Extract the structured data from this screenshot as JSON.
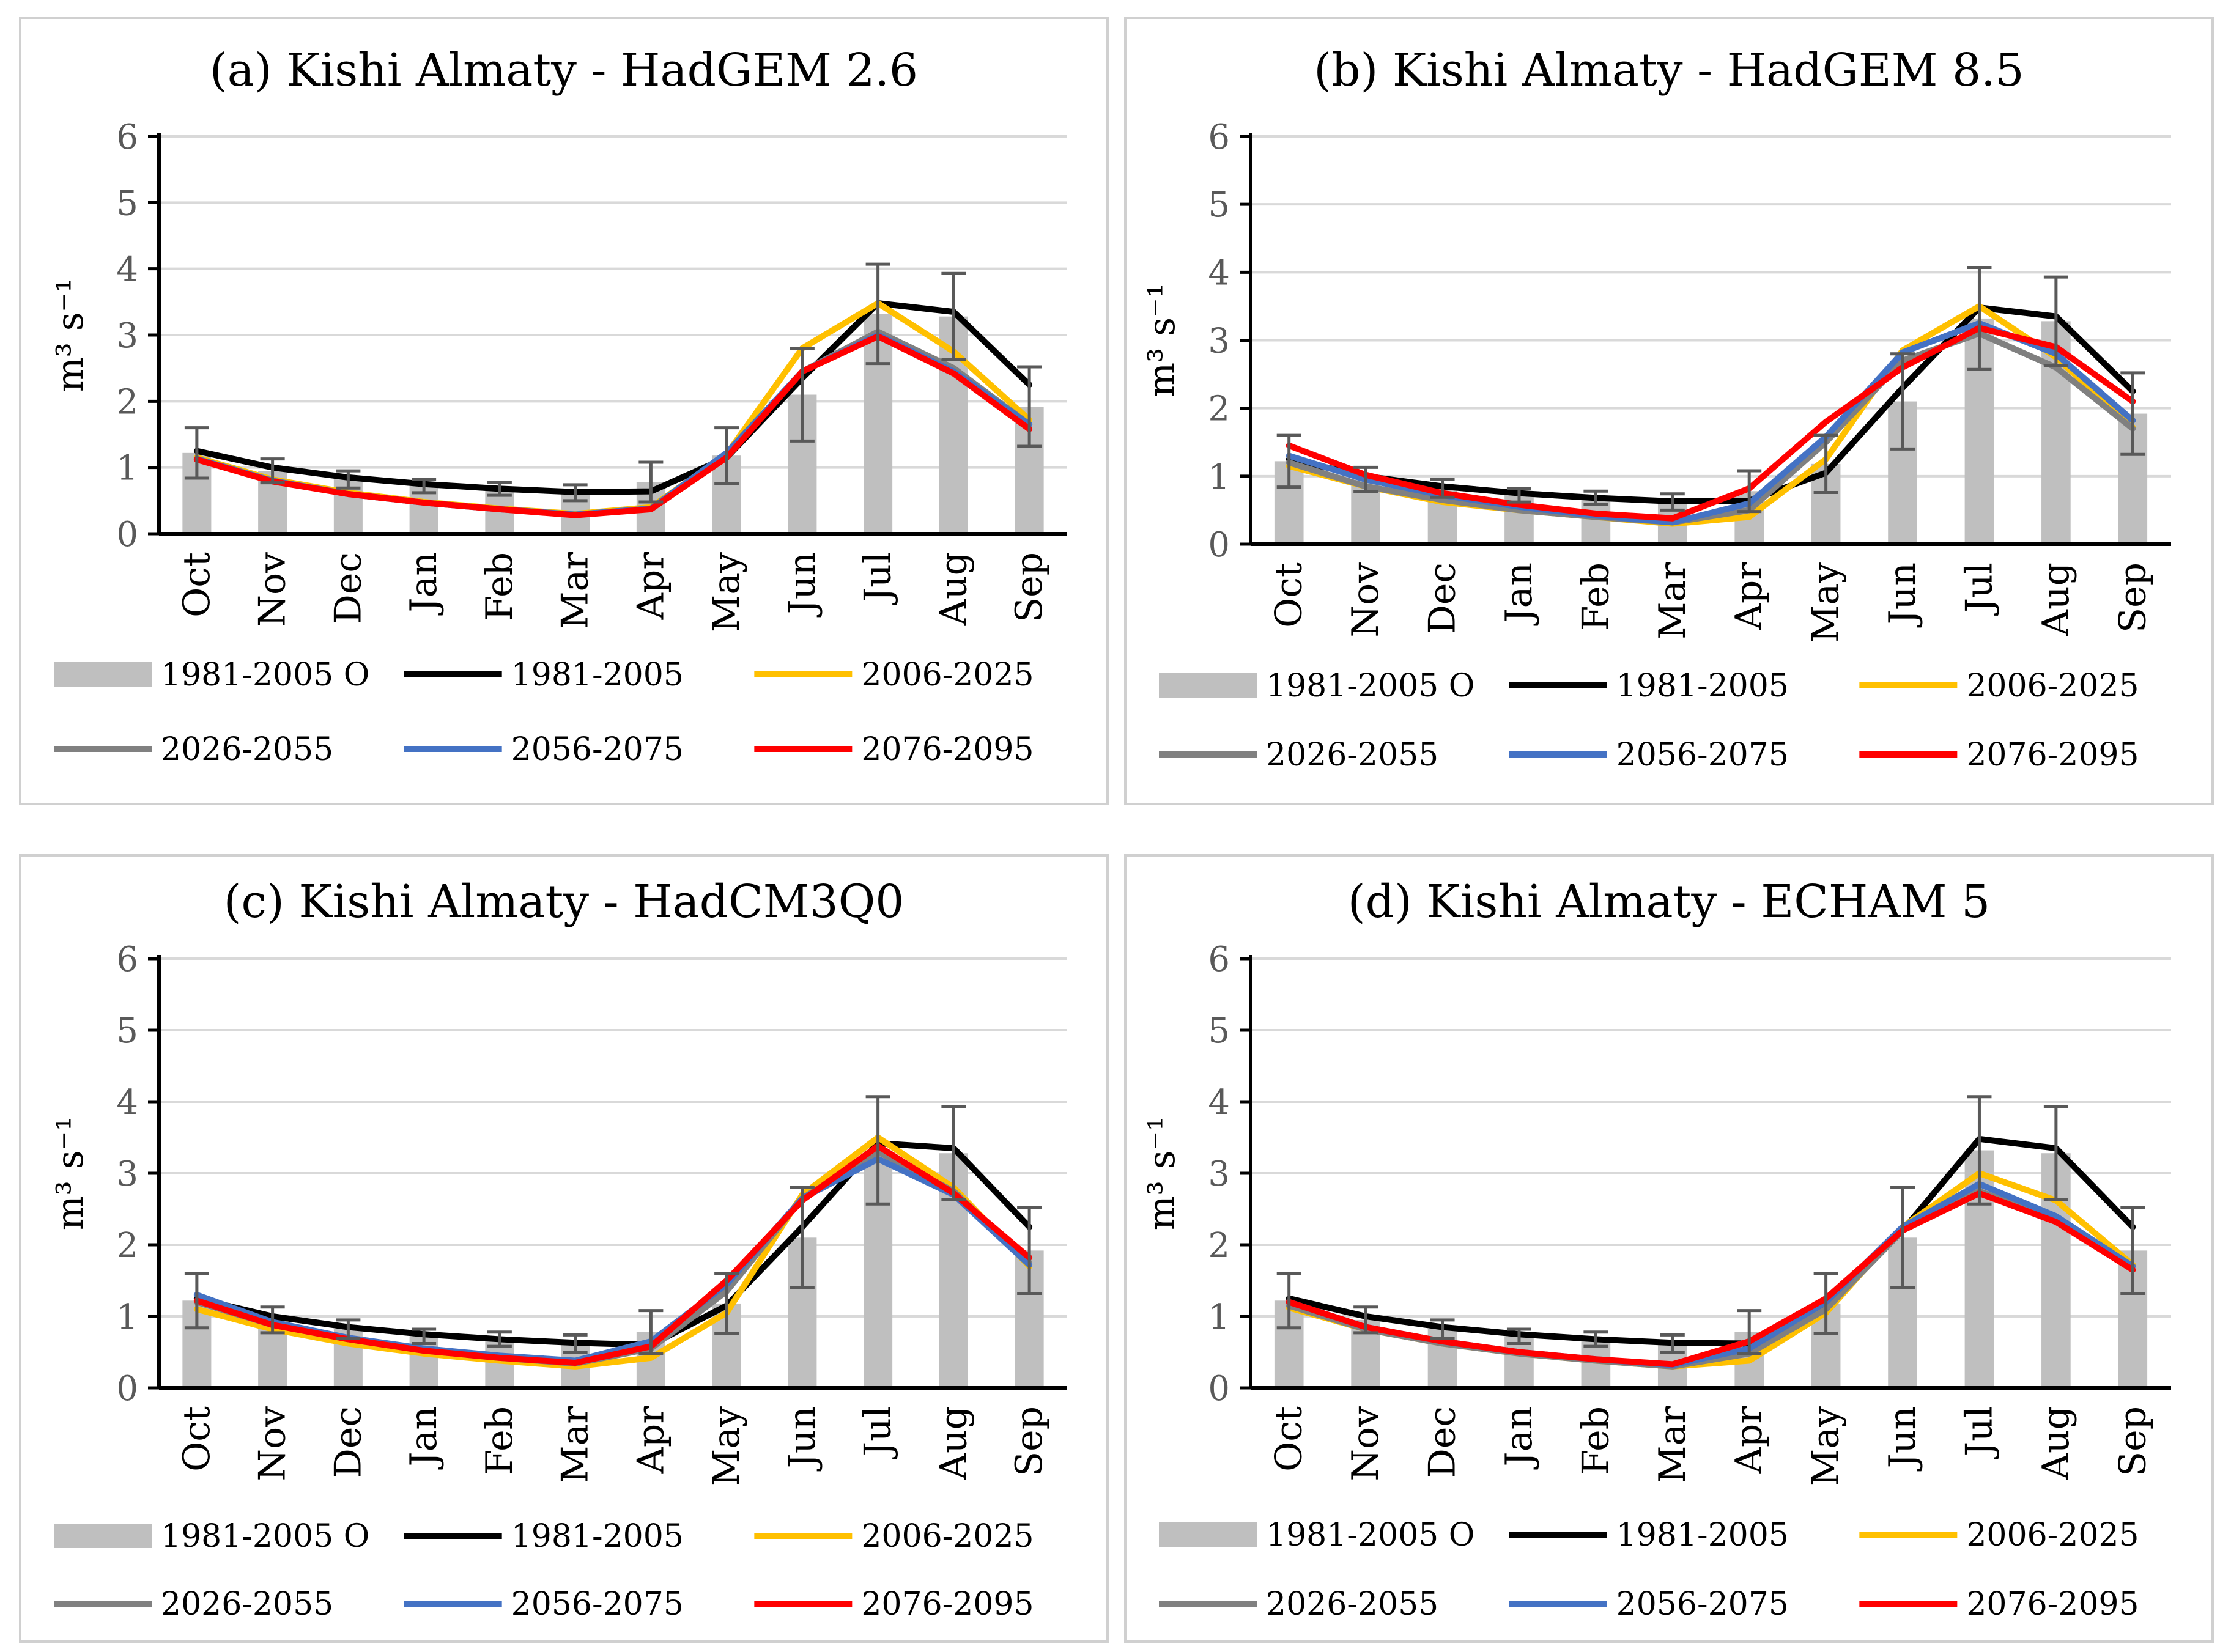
{
  "chart_data": [
    {
      "type": "bar",
      "title": "(a) Kishi Almaty - HadGEM 2.6",
      "ylabel": "m³ s⁻¹",
      "ylim": [
        0,
        6
      ],
      "yticks": [
        "0",
        "1",
        "2",
        "3",
        "4",
        "5",
        "6"
      ],
      "categories": [
        "Oct",
        "Nov",
        "Dec",
        "Jan",
        "Feb",
        "Mar",
        "Apr",
        "May",
        "Jun",
        "Jul",
        "Aug",
        "Sep"
      ],
      "bars": {
        "name": "1981-2005 O",
        "color": "#bfbfbf",
        "values": [
          1.22,
          0.95,
          0.82,
          0.72,
          0.68,
          0.62,
          0.78,
          1.18,
          2.1,
          3.32,
          3.28,
          1.92
        ],
        "error": [
          0.38,
          0.18,
          0.13,
          0.1,
          0.1,
          0.12,
          0.3,
          0.42,
          0.7,
          0.75,
          0.65,
          0.6
        ]
      },
      "series": [
        {
          "name": "1981-2005",
          "color": "#000000",
          "values": [
            1.25,
            1.0,
            0.85,
            0.75,
            0.68,
            0.63,
            0.64,
            1.15,
            2.35,
            3.48,
            3.35,
            2.25
          ]
        },
        {
          "name": "2006-2025",
          "color": "#ffc000",
          "values": [
            1.15,
            0.82,
            0.62,
            0.48,
            0.38,
            0.3,
            0.4,
            1.2,
            2.8,
            3.48,
            2.75,
            1.72
          ]
        },
        {
          "name": "2026-2055",
          "color": "#808080",
          "values": [
            1.13,
            0.8,
            0.6,
            0.47,
            0.37,
            0.29,
            0.38,
            1.18,
            2.45,
            3.05,
            2.5,
            1.65
          ]
        },
        {
          "name": "2056-2075",
          "color": "#4472c4",
          "values": [
            1.13,
            0.8,
            0.6,
            0.47,
            0.37,
            0.29,
            0.38,
            1.22,
            2.45,
            3.0,
            2.45,
            1.65
          ]
        },
        {
          "name": "2076-2095",
          "color": "#ff0000",
          "values": [
            1.12,
            0.79,
            0.6,
            0.47,
            0.37,
            0.28,
            0.37,
            1.15,
            2.45,
            2.98,
            2.42,
            1.58
          ]
        }
      ]
    },
    {
      "type": "bar",
      "title": "(b) Kishi Almaty - HadGEM 8.5",
      "ylabel": "m³ s⁻¹",
      "ylim": [
        0,
        6
      ],
      "yticks": [
        "0",
        "1",
        "2",
        "3",
        "4",
        "5",
        "6"
      ],
      "categories": [
        "Oct",
        "Nov",
        "Dec",
        "Jan",
        "Feb",
        "Mar",
        "Apr",
        "May",
        "Jun",
        "Jul",
        "Aug",
        "Sep"
      ],
      "bars": {
        "name": "1981-2005 O",
        "color": "#bfbfbf",
        "values": [
          1.22,
          0.95,
          0.82,
          0.72,
          0.68,
          0.62,
          0.78,
          1.18,
          2.1,
          3.32,
          3.28,
          1.92
        ],
        "error": [
          0.38,
          0.18,
          0.13,
          0.1,
          0.1,
          0.12,
          0.3,
          0.42,
          0.7,
          0.75,
          0.65,
          0.6
        ]
      },
      "series": [
        {
          "name": "1981-2005",
          "color": "#000000",
          "values": [
            1.25,
            1.0,
            0.85,
            0.75,
            0.68,
            0.63,
            0.64,
            1.05,
            2.3,
            3.48,
            3.35,
            2.25
          ]
        },
        {
          "name": "2006-2025",
          "color": "#ffc000",
          "values": [
            1.15,
            0.85,
            0.62,
            0.5,
            0.4,
            0.3,
            0.4,
            1.25,
            2.85,
            3.5,
            2.75,
            1.72
          ]
        },
        {
          "name": "2026-2055",
          "color": "#808080",
          "values": [
            1.2,
            0.85,
            0.65,
            0.5,
            0.4,
            0.32,
            0.5,
            1.5,
            2.7,
            3.1,
            2.6,
            1.7
          ]
        },
        {
          "name": "2056-2075",
          "color": "#4472c4",
          "values": [
            1.3,
            0.95,
            0.72,
            0.55,
            0.42,
            0.32,
            0.6,
            1.58,
            2.82,
            3.25,
            2.8,
            1.82
          ]
        },
        {
          "name": "2076-2095",
          "color": "#ff0000",
          "values": [
            1.45,
            1.02,
            0.75,
            0.58,
            0.45,
            0.38,
            0.82,
            1.8,
            2.6,
            3.18,
            2.9,
            2.1
          ]
        }
      ]
    },
    {
      "type": "bar",
      "title": "(c) Kishi Almaty - HadCM3Q0",
      "ylabel": "m³ s⁻¹",
      "ylim": [
        0,
        6
      ],
      "yticks": [
        "0",
        "1",
        "2",
        "3",
        "4",
        "5",
        "6"
      ],
      "categories": [
        "Oct",
        "Nov",
        "Dec",
        "Jan",
        "Feb",
        "Mar",
        "Apr",
        "May",
        "Jun",
        "Jul",
        "Aug",
        "Sep"
      ],
      "bars": {
        "name": "1981-2005 O",
        "color": "#bfbfbf",
        "values": [
          1.22,
          0.95,
          0.82,
          0.72,
          0.68,
          0.62,
          0.78,
          1.18,
          2.1,
          3.32,
          3.28,
          1.92
        ],
        "error": [
          0.38,
          0.18,
          0.13,
          0.1,
          0.1,
          0.12,
          0.3,
          0.42,
          0.7,
          0.75,
          0.65,
          0.6
        ]
      },
      "series": [
        {
          "name": "1981-2005",
          "color": "#000000",
          "values": [
            1.25,
            1.0,
            0.85,
            0.75,
            0.68,
            0.63,
            0.6,
            1.15,
            2.25,
            3.42,
            3.35,
            2.25
          ]
        },
        {
          "name": "2006-2025",
          "color": "#ffc000",
          "values": [
            1.1,
            0.82,
            0.62,
            0.48,
            0.38,
            0.3,
            0.42,
            1.05,
            2.7,
            3.5,
            2.8,
            1.7
          ]
        },
        {
          "name": "2026-2055",
          "color": "#808080",
          "values": [
            1.2,
            0.88,
            0.68,
            0.52,
            0.42,
            0.34,
            0.55,
            1.35,
            2.65,
            3.3,
            2.75,
            1.75
          ]
        },
        {
          "name": "2056-2075",
          "color": "#4472c4",
          "values": [
            1.3,
            0.92,
            0.7,
            0.55,
            0.45,
            0.38,
            0.65,
            1.45,
            2.65,
            3.2,
            2.7,
            1.72
          ]
        },
        {
          "name": "2076-2095",
          "color": "#ff0000",
          "values": [
            1.22,
            0.88,
            0.68,
            0.52,
            0.42,
            0.35,
            0.58,
            1.5,
            2.62,
            3.38,
            2.72,
            1.82
          ]
        }
      ]
    },
    {
      "type": "bar",
      "title": "(d) Kishi Almaty - ECHAM 5",
      "ylabel": "m³ s⁻¹",
      "ylim": [
        0,
        6
      ],
      "yticks": [
        "0",
        "1",
        "2",
        "3",
        "4",
        "5",
        "6"
      ],
      "categories": [
        "Oct",
        "Nov",
        "Dec",
        "Jan",
        "Feb",
        "Mar",
        "Apr",
        "May",
        "Jun",
        "Jul",
        "Aug",
        "Sep"
      ],
      "bars": {
        "name": "1981-2005 O",
        "color": "#bfbfbf",
        "values": [
          1.22,
          0.95,
          0.82,
          0.72,
          0.68,
          0.62,
          0.78,
          1.18,
          2.1,
          3.32,
          3.28,
          1.92
        ],
        "error": [
          0.38,
          0.18,
          0.13,
          0.1,
          0.1,
          0.12,
          0.3,
          0.42,
          0.7,
          0.75,
          0.65,
          0.6
        ]
      },
      "series": [
        {
          "name": "1981-2005",
          "color": "#000000",
          "values": [
            1.25,
            1.0,
            0.85,
            0.75,
            0.68,
            0.63,
            0.62,
            1.1,
            2.2,
            3.48,
            3.35,
            2.25
          ]
        },
        {
          "name": "2006-2025",
          "color": "#ffc000",
          "values": [
            1.12,
            0.82,
            0.62,
            0.48,
            0.38,
            0.3,
            0.38,
            1.05,
            2.25,
            3.0,
            2.62,
            1.72
          ]
        },
        {
          "name": "2026-2055",
          "color": "#808080",
          "values": [
            1.15,
            0.82,
            0.62,
            0.48,
            0.38,
            0.3,
            0.48,
            1.1,
            2.2,
            2.75,
            2.35,
            1.65
          ]
        },
        {
          "name": "2056-2075",
          "color": "#4472c4",
          "values": [
            1.2,
            0.85,
            0.65,
            0.5,
            0.4,
            0.32,
            0.55,
            1.2,
            2.25,
            2.85,
            2.4,
            1.7
          ]
        },
        {
          "name": "2076-2095",
          "color": "#ff0000",
          "values": [
            1.2,
            0.85,
            0.65,
            0.5,
            0.4,
            0.33,
            0.65,
            1.25,
            2.2,
            2.72,
            2.32,
            1.65
          ]
        }
      ]
    }
  ]
}
